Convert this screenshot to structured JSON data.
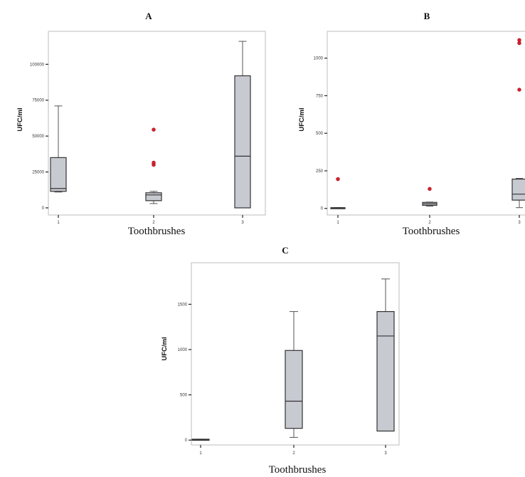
{
  "chart_data": [
    {
      "type": "box",
      "title": "A",
      "xlabel": "Toothbrushes",
      "ylabel": "UFC/ml",
      "categories": [
        "1",
        "2",
        "3"
      ],
      "yticks": [
        0,
        25000,
        50000,
        75000,
        100000
      ],
      "ylim": [
        -3000,
        120000
      ],
      "boxes": [
        {
          "category": "1",
          "min": 11000,
          "q1": 11500,
          "median": 13500,
          "q3": 35000,
          "max": 71000,
          "outliers": []
        },
        {
          "category": "2",
          "min": 3000,
          "q1": 5000,
          "median": 9000,
          "q3": 10500,
          "max": 11500,
          "outliers": [
            30000,
            31500,
            54500
          ]
        },
        {
          "category": "3",
          "min": 0,
          "q1": 0,
          "median": 36000,
          "q3": 92000,
          "max": 116000,
          "outliers": []
        }
      ],
      "colors": {
        "box": "#c8cad2",
        "outlier": "#d62030"
      }
    },
    {
      "type": "box",
      "title": "B",
      "xlabel": "Toothbrushes",
      "ylabel": "UFC/ml",
      "categories": [
        "1",
        "2",
        "3"
      ],
      "yticks": [
        0,
        250,
        500,
        750,
        1000
      ],
      "ylim": [
        -25,
        1150
      ],
      "boxes": [
        {
          "category": "1",
          "min": 0,
          "q1": 0,
          "median": 2,
          "q3": 5,
          "max": 6,
          "outliers": [
            195
          ]
        },
        {
          "category": "2",
          "min": 15,
          "q1": 20,
          "median": 30,
          "q3": 40,
          "max": 42,
          "outliers": [
            130
          ]
        },
        {
          "category": "3",
          "min": 5,
          "q1": 55,
          "median": 95,
          "q3": 195,
          "max": 200,
          "outliers": [
            790,
            1100,
            1120
          ]
        }
      ],
      "colors": {
        "box": "#c8cad2",
        "outlier": "#d62030"
      }
    },
    {
      "type": "box",
      "title": "C",
      "xlabel": "Toothbrushes",
      "ylabel": "UFC/ml",
      "categories": [
        "1",
        "2",
        "3"
      ],
      "yticks": [
        0,
        500,
        1000,
        1500
      ],
      "ylim": [
        -30,
        1920
      ],
      "boxes": [
        {
          "category": "1",
          "min": 0,
          "q1": 0,
          "median": 5,
          "q3": 10,
          "max": 10,
          "outliers": []
        },
        {
          "category": "2",
          "min": 30,
          "q1": 130,
          "median": 430,
          "q3": 990,
          "max": 1420,
          "outliers": []
        },
        {
          "category": "3",
          "min": 100,
          "q1": 100,
          "median": 1150,
          "q3": 1420,
          "max": 1780,
          "outliers": []
        }
      ],
      "colors": {
        "box": "#c8cad2",
        "outlier": "#d62030"
      }
    }
  ]
}
